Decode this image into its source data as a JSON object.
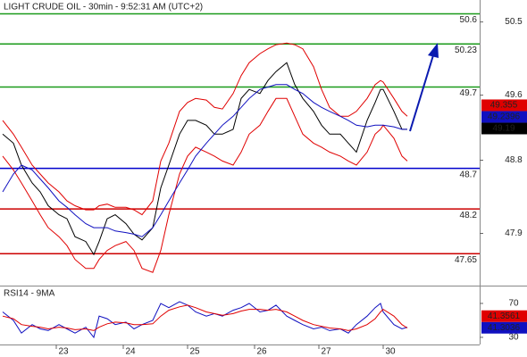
{
  "chart_data": [
    {
      "type": "line",
      "title": "LIGHT CRUDE OIL - 30min - 9:52:31 AM (UTC+2)",
      "x": [
        1,
        5,
        8,
        12,
        15,
        18,
        22,
        25,
        28,
        32,
        35,
        37,
        40,
        43,
        47,
        50,
        53,
        57,
        60,
        63,
        67,
        70,
        73,
        77,
        80,
        83,
        87,
        90,
        93,
        97,
        100,
        103,
        107,
        110,
        113,
        117,
        120,
        123,
        127,
        130,
        133,
        137,
        140,
        142,
        143,
        147,
        150,
        152
      ],
      "xlim": [
        0,
        179
      ],
      "xticks": [
        {
          "value": 21,
          "label": "23"
        },
        {
          "value": 46,
          "label": "24"
        },
        {
          "value": 70,
          "label": "25"
        },
        {
          "value": 95,
          "label": "26"
        },
        {
          "value": 119,
          "label": "27"
        },
        {
          "value": 143,
          "label": "30"
        }
      ],
      "ylim": [
        47.28,
        50.77
      ],
      "yticks": [
        50.5,
        49.6,
        48.8,
        47.9
      ],
      "series": [
        {
          "color": "#000000",
          "values": [
            49.12,
            49.01,
            48.74,
            48.52,
            48.41,
            48.24,
            48.13,
            48.08,
            47.86,
            47.8,
            47.64,
            47.8,
            48.08,
            48.13,
            48.02,
            47.89,
            47.82,
            47.97,
            48.46,
            48.74,
            49.12,
            49.29,
            49.29,
            49.23,
            49.12,
            49.12,
            49.18,
            49.56,
            49.67,
            49.62,
            49.78,
            49.89,
            50.0,
            49.73,
            49.56,
            49.4,
            49.23,
            49.12,
            49.12,
            49.01,
            48.9,
            49.29,
            49.51,
            49.67,
            49.67,
            49.4,
            49.18,
            49.18
          ]
        },
        {
          "color": "#e00000",
          "values": [
            49.29,
            49.12,
            48.96,
            48.74,
            48.63,
            48.52,
            48.41,
            48.3,
            48.24,
            48.19,
            48.19,
            48.24,
            48.26,
            48.22,
            48.22,
            48.19,
            48.13,
            48.3,
            48.79,
            49.01,
            49.4,
            49.51,
            49.56,
            49.54,
            49.45,
            49.43,
            49.62,
            49.84,
            50.0,
            50.11,
            50.17,
            50.22,
            50.24,
            50.22,
            50.17,
            49.95,
            49.67,
            49.45,
            49.34,
            49.34,
            49.4,
            49.56,
            49.73,
            49.78,
            49.76,
            49.56,
            49.4,
            49.34
          ]
        },
        {
          "color": "#e00000",
          "values": [
            48.85,
            48.68,
            48.52,
            48.3,
            48.13,
            47.97,
            47.86,
            47.75,
            47.58,
            47.47,
            47.47,
            47.58,
            47.69,
            47.75,
            47.8,
            47.69,
            47.47,
            47.42,
            47.69,
            48.13,
            48.63,
            48.85,
            48.96,
            48.9,
            48.85,
            48.79,
            48.74,
            48.9,
            49.12,
            49.23,
            49.4,
            49.56,
            49.56,
            49.34,
            49.12,
            49.01,
            48.96,
            48.9,
            48.85,
            48.79,
            48.74,
            48.9,
            49.12,
            49.18,
            49.23,
            49.07,
            48.85,
            48.79
          ]
        },
        {
          "color": "#1010c0",
          "values": [
            48.41,
            48.63,
            48.74,
            48.68,
            48.57,
            48.46,
            48.3,
            48.22,
            48.13,
            48.02,
            47.97,
            47.97,
            47.97,
            47.93,
            47.91,
            47.89,
            47.86,
            47.97,
            48.13,
            48.3,
            48.52,
            48.68,
            48.85,
            49.01,
            49.12,
            49.23,
            49.34,
            49.45,
            49.56,
            49.67,
            49.7,
            49.73,
            49.73,
            49.67,
            49.62,
            49.51,
            49.45,
            49.4,
            49.34,
            49.29,
            49.23,
            49.21,
            49.23,
            49.23,
            49.23,
            49.21,
            49.18,
            49.18
          ]
        }
      ],
      "levels": [
        {
          "value": 50.6,
          "color": "#1a9a1a"
        },
        {
          "value": 50.23,
          "color": "#1a9a1a"
        },
        {
          "value": 49.7,
          "color": "#1a9a1a"
        },
        {
          "value": 48.7,
          "color": "#0000cc"
        },
        {
          "value": 48.2,
          "color": "#cc0000"
        },
        {
          "value": 47.65,
          "color": "#cc0000"
        }
      ],
      "markers": [
        {
          "value": 49.355,
          "color": "#e00000"
        },
        {
          "value": 49.2396,
          "color": "#1010c0"
        },
        {
          "value": 49.19,
          "color": "#000000"
        }
      ]
    },
    {
      "type": "line",
      "title": "RSI14 - 9MA",
      "x": [
        1,
        5,
        8,
        12,
        15,
        18,
        22,
        25,
        28,
        32,
        35,
        37,
        40,
        43,
        47,
        50,
        53,
        57,
        60,
        63,
        67,
        70,
        73,
        77,
        80,
        83,
        87,
        90,
        93,
        97,
        100,
        103,
        107,
        110,
        113,
        117,
        120,
        123,
        127,
        130,
        133,
        137,
        140,
        142,
        143,
        147,
        150,
        152
      ],
      "xlim": [
        0,
        179
      ],
      "ylim": [
        22.6,
        88.9
      ],
      "yticks": [
        70,
        30
      ],
      "series": [
        {
          "color": "#1010c0",
          "values": [
            60,
            50,
            35,
            45,
            40,
            38,
            45,
            40,
            35,
            42,
            30,
            55,
            52,
            45,
            48,
            40,
            45,
            50,
            70,
            65,
            72,
            68,
            60,
            55,
            58,
            55,
            62,
            65,
            70,
            60,
            62,
            68,
            55,
            50,
            45,
            40,
            42,
            38,
            40,
            35,
            45,
            55,
            65,
            70,
            60,
            45,
            40,
            42
          ]
        },
        {
          "color": "#e00000",
          "values": [
            55,
            52,
            45,
            43,
            42,
            40,
            42,
            41,
            39,
            40,
            38,
            42,
            46,
            48,
            47,
            45,
            45,
            46,
            55,
            62,
            66,
            68,
            65,
            60,
            58,
            56,
            58,
            61,
            63,
            63,
            62,
            63,
            60,
            55,
            50,
            45,
            43,
            41,
            40,
            38,
            40,
            45,
            52,
            60,
            63,
            55,
            45,
            41
          ]
        }
      ],
      "markers": [
        {
          "value": 41.3561,
          "color": "#e00000"
        },
        {
          "value": 41.3036,
          "color": "#1010c0"
        }
      ]
    }
  ]
}
